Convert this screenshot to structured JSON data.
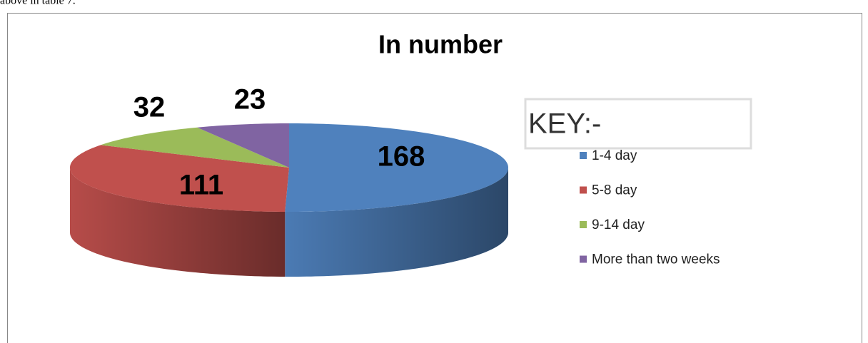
{
  "document_text": "above in table 7.",
  "chart_data": {
    "type": "pie3d",
    "title": "In number",
    "legend_title": "KEY:-",
    "categories": [
      "1-4 day",
      "5-8 day",
      "9-14 day",
      "More than two weeks"
    ],
    "values": [
      168,
      111,
      32,
      23
    ],
    "colors": [
      "#4f81bd",
      "#c0504d",
      "#9bbb59",
      "#8064a2"
    ]
  }
}
